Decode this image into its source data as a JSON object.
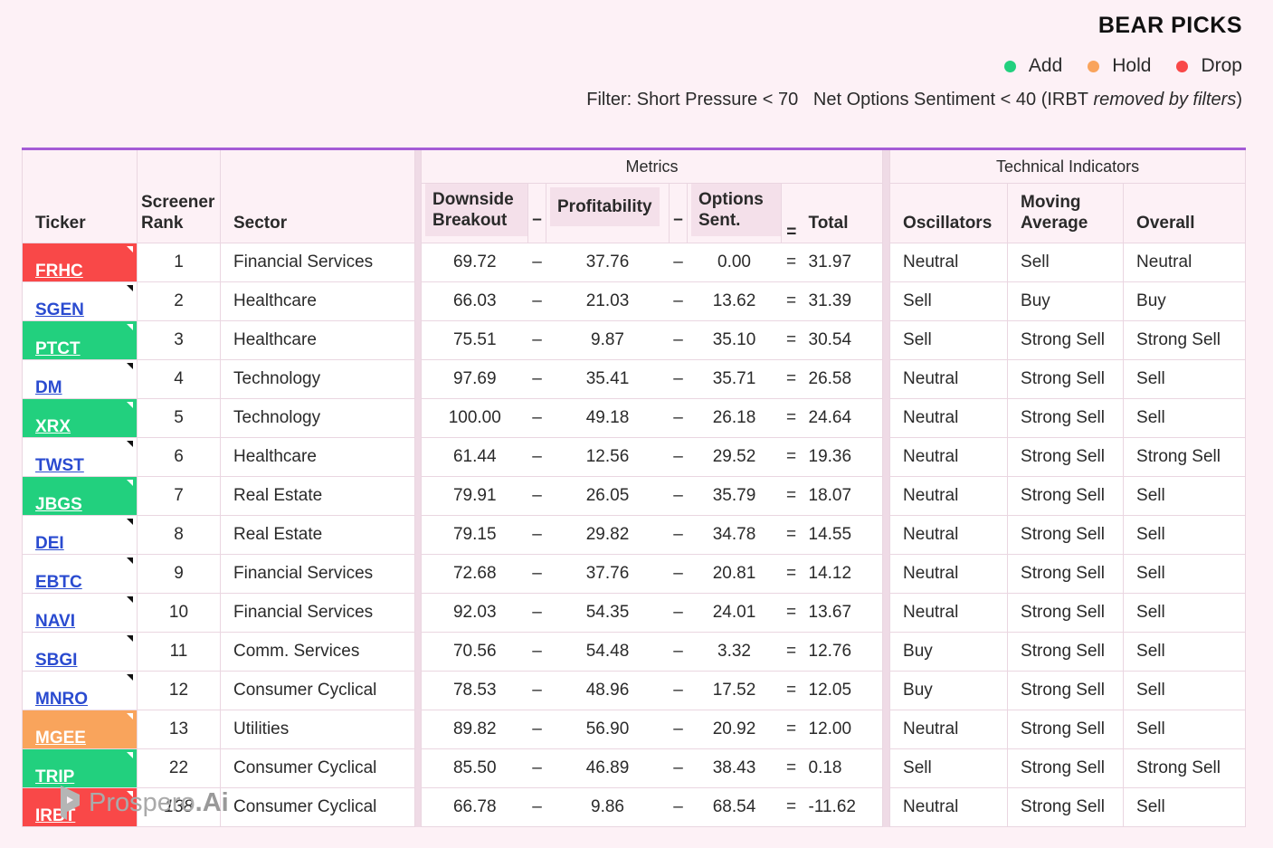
{
  "header": {
    "title": "BEAR PICKS",
    "legend": [
      {
        "name": "Add",
        "color": "#22d07e"
      },
      {
        "name": "Hold",
        "color": "#f9a45c"
      },
      {
        "name": "Drop",
        "color": "#f94848"
      }
    ],
    "filter": {
      "part1": "Filter: Short Pressure < 70",
      "part2": "Net Options Sentiment < 40 (IRBT",
      "italic": "removed by filters",
      "part3": ")"
    }
  },
  "table": {
    "groups": {
      "metrics": "Metrics",
      "technical": "Technical Indicators"
    },
    "columns": {
      "ticker": "Ticker",
      "rank": "Screener Rank",
      "sector": "Sector",
      "downside": "Downside Breakout",
      "profitability": "Profitability",
      "options": "Options Sent.",
      "total": "Total",
      "oscillators": "Oscillators",
      "moving_average": "Moving Average",
      "overall": "Overall"
    },
    "operators": {
      "minus": "–",
      "equals": "="
    },
    "rows": [
      {
        "ticker": "FRHC",
        "status": "Drop",
        "rank": 1,
        "sector": "Financial Services",
        "downside": "69.72",
        "profitability": "37.76",
        "options": "0.00",
        "total": "31.97",
        "oscillators": "Neutral",
        "moving_average": "Sell",
        "overall": "Neutral"
      },
      {
        "ticker": "SGEN",
        "status": null,
        "rank": 2,
        "sector": "Healthcare",
        "downside": "66.03",
        "profitability": "21.03",
        "options": "13.62",
        "total": "31.39",
        "oscillators": "Sell",
        "moving_average": "Buy",
        "overall": "Buy"
      },
      {
        "ticker": "PTCT",
        "status": "Add",
        "rank": 3,
        "sector": "Healthcare",
        "downside": "75.51",
        "profitability": "9.87",
        "options": "35.10",
        "total": "30.54",
        "oscillators": "Sell",
        "moving_average": "Strong Sell",
        "overall": "Strong Sell"
      },
      {
        "ticker": "DM",
        "status": null,
        "rank": 4,
        "sector": "Technology",
        "downside": "97.69",
        "profitability": "35.41",
        "options": "35.71",
        "total": "26.58",
        "oscillators": "Neutral",
        "moving_average": "Strong Sell",
        "overall": "Sell"
      },
      {
        "ticker": "XRX",
        "status": "Add",
        "rank": 5,
        "sector": "Technology",
        "downside": "100.00",
        "profitability": "49.18",
        "options": "26.18",
        "total": "24.64",
        "oscillators": "Neutral",
        "moving_average": "Strong Sell",
        "overall": "Sell"
      },
      {
        "ticker": "TWST",
        "status": null,
        "rank": 6,
        "sector": "Healthcare",
        "downside": "61.44",
        "profitability": "12.56",
        "options": "29.52",
        "total": "19.36",
        "oscillators": "Neutral",
        "moving_average": "Strong Sell",
        "overall": "Strong Sell"
      },
      {
        "ticker": "JBGS",
        "status": "Add",
        "rank": 7,
        "sector": "Real Estate",
        "downside": "79.91",
        "profitability": "26.05",
        "options": "35.79",
        "total": "18.07",
        "oscillators": "Neutral",
        "moving_average": "Strong Sell",
        "overall": "Sell"
      },
      {
        "ticker": "DEI",
        "status": null,
        "rank": 8,
        "sector": "Real Estate",
        "downside": "79.15",
        "profitability": "29.82",
        "options": "34.78",
        "total": "14.55",
        "oscillators": "Neutral",
        "moving_average": "Strong Sell",
        "overall": "Sell"
      },
      {
        "ticker": "EBTC",
        "status": null,
        "rank": 9,
        "sector": "Financial Services",
        "downside": "72.68",
        "profitability": "37.76",
        "options": "20.81",
        "total": "14.12",
        "oscillators": "Neutral",
        "moving_average": "Strong Sell",
        "overall": "Sell"
      },
      {
        "ticker": "NAVI",
        "status": null,
        "rank": 10,
        "sector": "Financial Services",
        "downside": "92.03",
        "profitability": "54.35",
        "options": "24.01",
        "total": "13.67",
        "oscillators": "Neutral",
        "moving_average": "Strong Sell",
        "overall": "Sell"
      },
      {
        "ticker": "SBGI",
        "status": null,
        "rank": 11,
        "sector": "Comm. Services",
        "downside": "70.56",
        "profitability": "54.48",
        "options": "3.32",
        "total": "12.76",
        "oscillators": "Buy",
        "moving_average": "Strong Sell",
        "overall": "Sell"
      },
      {
        "ticker": "MNRO",
        "status": null,
        "rank": 12,
        "sector": "Consumer Cyclical",
        "downside": "78.53",
        "profitability": "48.96",
        "options": "17.52",
        "total": "12.05",
        "oscillators": "Buy",
        "moving_average": "Strong Sell",
        "overall": "Sell"
      },
      {
        "ticker": "MGEE",
        "status": "Hold",
        "rank": 13,
        "sector": "Utilities",
        "downside": "89.82",
        "profitability": "56.90",
        "options": "20.92",
        "total": "12.00",
        "oscillators": "Neutral",
        "moving_average": "Strong Sell",
        "overall": "Sell"
      },
      {
        "ticker": "TRIP",
        "status": "Add",
        "rank": 22,
        "sector": "Consumer Cyclical",
        "downside": "85.50",
        "profitability": "46.89",
        "options": "38.43",
        "total": "0.18",
        "oscillators": "Sell",
        "moving_average": "Strong Sell",
        "overall": "Strong Sell"
      },
      {
        "ticker": "IRBT",
        "status": "Drop",
        "rank": 138,
        "sector": "Consumer Cyclical",
        "downside": "66.78",
        "profitability": "9.86",
        "options": "68.54",
        "total": "-11.62",
        "oscillators": "Neutral",
        "moving_average": "Strong Sell",
        "overall": "Sell"
      }
    ]
  },
  "footer": {
    "brand": "Prospero",
    "brand_suffix": ".Ai"
  }
}
